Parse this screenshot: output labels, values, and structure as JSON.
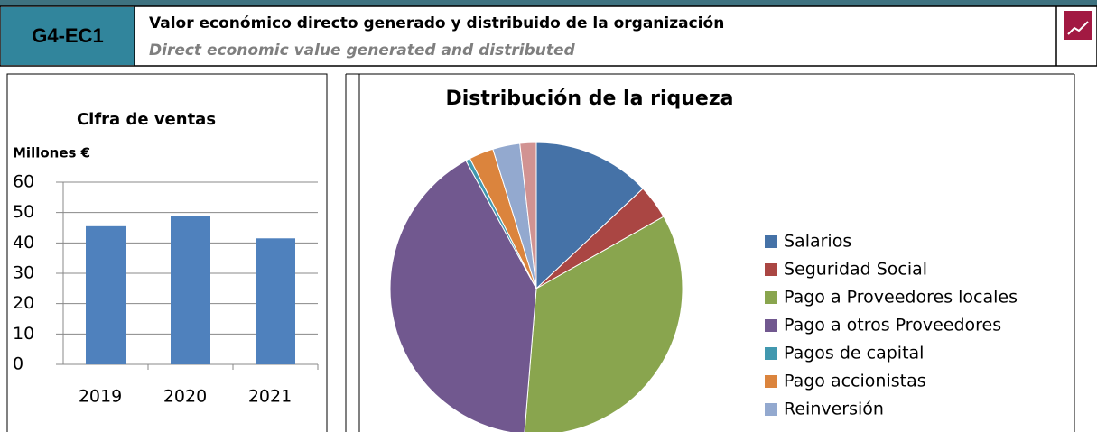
{
  "header": {
    "code": "G4-EC1",
    "title": "Valor económico directo generado y distribuido de la organización",
    "subtitle": "Direct economic value generated and distributed"
  },
  "chart_data": [
    {
      "type": "bar",
      "title": "Cifra de ventas",
      "y_label": "Millones €",
      "categories": [
        "2019",
        "2020",
        "2021"
      ],
      "values": [
        45.5,
        48.8,
        41.5
      ],
      "color": "#4f81bd",
      "ylim": [
        0,
        60
      ],
      "yticks": [
        0,
        10,
        20,
        30,
        40,
        50,
        60
      ],
      "grid": true
    },
    {
      "type": "pie",
      "title": "Distribución de la riqueza",
      "categories": [
        "Salarios",
        "Seguridad Social",
        "Pago a Proveedores locales",
        "Pago a otros Proveedores",
        "Pagos de capital",
        "Pago accionistas",
        "Reinversión",
        null
      ],
      "values": [
        13,
        3.8,
        34.5,
        40.7,
        0.5,
        2.7,
        3,
        1.8
      ],
      "colors": [
        "#4572a7",
        "#aa4643",
        "#89a54e",
        "#71588f",
        "#4198af",
        "#db843d",
        "#93a9cf",
        "#d19392"
      ],
      "legend": "right"
    }
  ]
}
